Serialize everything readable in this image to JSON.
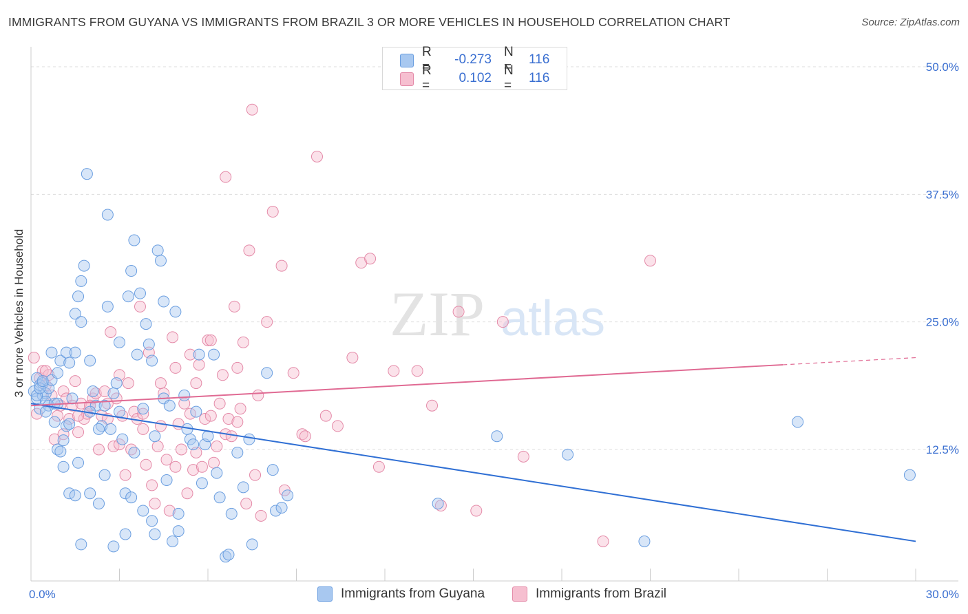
{
  "title": "IMMIGRANTS FROM GUYANA VS IMMIGRANTS FROM BRAZIL 3 OR MORE VEHICLES IN HOUSEHOLD CORRELATION CHART",
  "source": "Source: ZipAtlas.com",
  "watermark": {
    "zip": "ZIP",
    "atlas": "atlas"
  },
  "legend": {
    "rows": [
      {
        "r_label": "R =",
        "r_value": "-0.273",
        "n_label": "N =",
        "n_value": "116"
      },
      {
        "r_label": "R =",
        "r_value": "0.102",
        "n_label": "N =",
        "n_value": "116"
      }
    ]
  },
  "colors": {
    "guyana_fill": "#a8c8f0",
    "guyana_stroke": "#6a9ee0",
    "guyana_line": "#2f6fd4",
    "brazil_fill": "#f6bfd0",
    "brazil_stroke": "#e48aa8",
    "brazil_line": "#e06a93",
    "tick_text": "#3a6fd1",
    "grid": "#dddddd"
  },
  "chart_data": {
    "type": "scatter",
    "title": "IMMIGRANTS FROM GUYANA VS IMMIGRANTS FROM BRAZIL 3 OR MORE VEHICLES IN HOUSEHOLD CORRELATION CHART",
    "xlabel": "",
    "ylabel": "3 or more Vehicles in Household",
    "xlim": [
      0,
      30
    ],
    "ylim": [
      0,
      50
    ],
    "x_tick_labels": [
      "0.0%",
      "30.0%"
    ],
    "y_ticks": [
      12.5,
      25.0,
      37.5,
      50.0
    ],
    "y_tick_labels": [
      "12.5%",
      "25.0%",
      "37.5%",
      "50.0%"
    ],
    "grid": "horizontal dashed",
    "legend_position": "top-center",
    "series": [
      {
        "name": "Immigrants from Guyana",
        "r": -0.273,
        "n": 116,
        "trend": {
          "x": [
            0,
            30
          ],
          "y": [
            17.0,
            3.5
          ]
        },
        "points": [
          [
            0.1,
            18.2
          ],
          [
            0.2,
            17.5
          ],
          [
            0.2,
            19.5
          ],
          [
            0.3,
            18.8
          ],
          [
            0.3,
            16.5
          ],
          [
            0.4,
            17.8
          ],
          [
            0.4,
            19.0
          ],
          [
            0.5,
            18.0
          ],
          [
            0.5,
            17.2
          ],
          [
            0.6,
            16.8
          ],
          [
            0.6,
            18.5
          ],
          [
            0.7,
            22.0
          ],
          [
            0.7,
            19.3
          ],
          [
            0.8,
            17.0
          ],
          [
            0.8,
            15.2
          ],
          [
            0.9,
            20.0
          ],
          [
            0.9,
            12.5
          ],
          [
            1.0,
            21.2
          ],
          [
            1.0,
            12.3
          ],
          [
            1.1,
            13.4
          ],
          [
            1.1,
            10.8
          ],
          [
            1.2,
            22.0
          ],
          [
            1.2,
            14.8
          ],
          [
            1.3,
            21.0
          ],
          [
            1.3,
            8.2
          ],
          [
            1.4,
            17.5
          ],
          [
            1.5,
            25.8
          ],
          [
            1.5,
            22.0
          ],
          [
            1.6,
            27.5
          ],
          [
            1.6,
            11.2
          ],
          [
            1.7,
            25.0
          ],
          [
            1.7,
            29.0
          ],
          [
            1.8,
            30.5
          ],
          [
            1.9,
            39.5
          ],
          [
            2.0,
            21.2
          ],
          [
            2.0,
            8.2
          ],
          [
            2.1,
            18.2
          ],
          [
            2.2,
            16.8
          ],
          [
            2.3,
            7.2
          ],
          [
            2.4,
            14.8
          ],
          [
            2.5,
            10.0
          ],
          [
            2.5,
            16.8
          ],
          [
            2.6,
            26.5
          ],
          [
            2.6,
            35.5
          ],
          [
            2.7,
            14.5
          ],
          [
            2.8,
            3.0
          ],
          [
            2.9,
            19.0
          ],
          [
            3.0,
            23.0
          ],
          [
            3.1,
            13.5
          ],
          [
            3.2,
            8.2
          ],
          [
            3.2,
            4.2
          ],
          [
            3.3,
            27.5
          ],
          [
            3.4,
            7.8
          ],
          [
            3.4,
            30.0
          ],
          [
            3.5,
            33.0
          ],
          [
            3.6,
            21.8
          ],
          [
            3.7,
            27.8
          ],
          [
            3.8,
            16.5
          ],
          [
            3.8,
            6.5
          ],
          [
            3.9,
            24.8
          ],
          [
            4.0,
            22.8
          ],
          [
            4.1,
            21.2
          ],
          [
            4.1,
            5.5
          ],
          [
            4.2,
            4.2
          ],
          [
            4.3,
            32.0
          ],
          [
            4.4,
            31.0
          ],
          [
            4.5,
            27.0
          ],
          [
            4.5,
            17.5
          ],
          [
            4.6,
            9.5
          ],
          [
            4.7,
            16.8
          ],
          [
            4.8,
            3.5
          ],
          [
            4.9,
            26.0
          ],
          [
            5.0,
            4.5
          ],
          [
            5.0,
            6.2
          ],
          [
            5.2,
            17.8
          ],
          [
            5.3,
            14.5
          ],
          [
            5.4,
            13.5
          ],
          [
            5.5,
            13.0
          ],
          [
            5.6,
            16.2
          ],
          [
            5.7,
            21.8
          ],
          [
            5.8,
            9.2
          ],
          [
            5.9,
            13.0
          ],
          [
            6.0,
            13.8
          ],
          [
            6.2,
            21.8
          ],
          [
            6.3,
            10.2
          ],
          [
            6.4,
            7.8
          ],
          [
            6.6,
            2.0
          ],
          [
            6.7,
            2.2
          ],
          [
            6.8,
            6.2
          ],
          [
            7.0,
            12.2
          ],
          [
            7.2,
            8.8
          ],
          [
            7.4,
            13.5
          ],
          [
            7.5,
            3.2
          ],
          [
            8.0,
            20.0
          ],
          [
            8.2,
            10.5
          ],
          [
            8.3,
            6.5
          ],
          [
            8.5,
            6.8
          ],
          [
            8.7,
            8.0
          ],
          [
            0.2,
            17.8
          ],
          [
            0.3,
            18.5
          ],
          [
            0.4,
            19.2
          ],
          [
            0.5,
            16.2
          ],
          [
            0.9,
            17.0
          ],
          [
            1.3,
            15.0
          ],
          [
            1.7,
            3.2
          ],
          [
            2.0,
            16.2
          ],
          [
            2.3,
            14.5
          ],
          [
            3.0,
            16.2
          ],
          [
            3.5,
            12.2
          ],
          [
            4.2,
            13.8
          ],
          [
            1.5,
            8.0
          ],
          [
            2.8,
            18.0
          ],
          [
            13.8,
            7.2
          ],
          [
            15.8,
            13.8
          ],
          [
            18.2,
            12.0
          ],
          [
            20.8,
            3.5
          ],
          [
            26.0,
            15.2
          ],
          [
            29.8,
            10.0
          ]
        ]
      },
      {
        "name": "Immigrants from Brazil",
        "r": 0.102,
        "n": 116,
        "trend": {
          "x": [
            0,
            25.5
          ],
          "y": [
            16.8,
            20.8
          ]
        },
        "trend_dashed": {
          "x": [
            25.5,
            30
          ],
          "y": [
            20.8,
            21.5
          ]
        },
        "points": [
          [
            0.1,
            21.5
          ],
          [
            0.2,
            16.0
          ],
          [
            0.3,
            19.5
          ],
          [
            0.4,
            20.2
          ],
          [
            0.5,
            18.8
          ],
          [
            0.6,
            19.8
          ],
          [
            0.7,
            17.8
          ],
          [
            0.8,
            13.5
          ],
          [
            0.9,
            15.8
          ],
          [
            1.0,
            16.8
          ],
          [
            1.1,
            18.2
          ],
          [
            1.2,
            17.5
          ],
          [
            1.3,
            15.5
          ],
          [
            1.4,
            16.8
          ],
          [
            1.5,
            19.2
          ],
          [
            1.6,
            14.2
          ],
          [
            1.7,
            17.0
          ],
          [
            1.8,
            15.5
          ],
          [
            1.9,
            16.0
          ],
          [
            2.0,
            16.8
          ],
          [
            2.1,
            17.5
          ],
          [
            2.2,
            18.0
          ],
          [
            2.3,
            12.5
          ],
          [
            2.4,
            15.8
          ],
          [
            2.5,
            18.2
          ],
          [
            2.6,
            15.5
          ],
          [
            2.7,
            24.0
          ],
          [
            2.8,
            12.8
          ],
          [
            2.9,
            17.5
          ],
          [
            3.0,
            19.8
          ],
          [
            3.1,
            15.8
          ],
          [
            3.2,
            10.0
          ],
          [
            3.3,
            19.0
          ],
          [
            3.4,
            12.5
          ],
          [
            3.5,
            16.2
          ],
          [
            3.6,
            15.5
          ],
          [
            3.7,
            26.5
          ],
          [
            3.8,
            14.5
          ],
          [
            3.9,
            11.0
          ],
          [
            4.0,
            22.0
          ],
          [
            4.1,
            9.0
          ],
          [
            4.2,
            7.2
          ],
          [
            4.3,
            12.8
          ],
          [
            4.4,
            14.8
          ],
          [
            4.5,
            18.0
          ],
          [
            4.6,
            11.5
          ],
          [
            4.7,
            6.5
          ],
          [
            4.8,
            23.5
          ],
          [
            4.9,
            20.5
          ],
          [
            5.0,
            15.0
          ],
          [
            5.1,
            12.5
          ],
          [
            5.2,
            17.0
          ],
          [
            5.3,
            8.2
          ],
          [
            5.4,
            16.0
          ],
          [
            5.5,
            10.5
          ],
          [
            5.6,
            19.0
          ],
          [
            5.7,
            20.8
          ],
          [
            5.8,
            10.8
          ],
          [
            5.9,
            15.5
          ],
          [
            6.0,
            23.2
          ],
          [
            6.1,
            15.8
          ],
          [
            6.2,
            11.2
          ],
          [
            6.3,
            12.8
          ],
          [
            6.4,
            17.0
          ],
          [
            6.5,
            19.8
          ],
          [
            6.6,
            14.0
          ],
          [
            6.7,
            15.5
          ],
          [
            6.8,
            13.8
          ],
          [
            6.9,
            26.5
          ],
          [
            7.0,
            15.2
          ],
          [
            7.1,
            16.5
          ],
          [
            7.2,
            23.0
          ],
          [
            7.3,
            7.2
          ],
          [
            7.4,
            32.0
          ],
          [
            7.5,
            45.8
          ],
          [
            7.6,
            10.0
          ],
          [
            7.7,
            17.8
          ],
          [
            7.8,
            6.0
          ],
          [
            8.0,
            25.0
          ],
          [
            8.2,
            35.8
          ],
          [
            8.5,
            30.5
          ],
          [
            8.9,
            20.0
          ],
          [
            9.2,
            14.0
          ],
          [
            9.3,
            13.8
          ],
          [
            9.7,
            41.2
          ],
          [
            10.0,
            15.8
          ],
          [
            10.4,
            14.8
          ],
          [
            10.9,
            21.5
          ],
          [
            11.2,
            30.8
          ],
          [
            11.5,
            31.2
          ],
          [
            11.8,
            10.8
          ],
          [
            12.3,
            20.2
          ],
          [
            13.1,
            20.2
          ],
          [
            13.6,
            16.8
          ],
          [
            13.9,
            7.0
          ],
          [
            14.5,
            26.0
          ],
          [
            15.1,
            6.5
          ],
          [
            16.0,
            25.0
          ],
          [
            16.7,
            11.8
          ],
          [
            19.4,
            3.5
          ],
          [
            21.0,
            31.0
          ],
          [
            6.6,
            39.2
          ],
          [
            6.1,
            23.2
          ],
          [
            5.4,
            21.8
          ],
          [
            4.9,
            10.8
          ],
          [
            3.8,
            16.0
          ],
          [
            2.6,
            17.0
          ],
          [
            1.6,
            15.8
          ],
          [
            0.5,
            20.2
          ],
          [
            1.1,
            14.0
          ],
          [
            2.0,
            16.8
          ],
          [
            3.0,
            13.0
          ],
          [
            4.4,
            19.0
          ],
          [
            5.6,
            12.2
          ],
          [
            7.0,
            20.5
          ],
          [
            8.6,
            8.5
          ]
        ]
      }
    ]
  },
  "bottom_legend": [
    "Immigrants from Guyana",
    "Immigrants from Brazil"
  ]
}
